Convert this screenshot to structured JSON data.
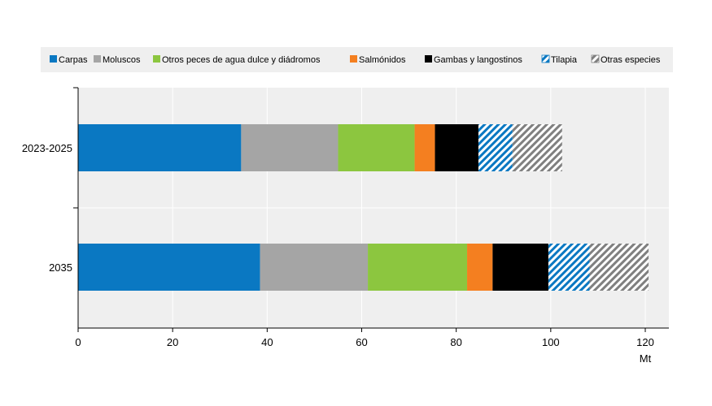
{
  "chart_data": {
    "type": "bar",
    "orientation": "horizontal",
    "stacked": true,
    "categories": [
      "2023-2025",
      "2035"
    ],
    "xlabel": "Mt",
    "xlim": [
      0,
      125
    ],
    "xticks": [
      0,
      20,
      40,
      60,
      80,
      100,
      120
    ],
    "grid": true,
    "legend_position": "top",
    "series": [
      {
        "name": "Carpas",
        "values": [
          34.5,
          38.5
        ],
        "color": "#0a78c2",
        "pattern": "solid"
      },
      {
        "name": "Moluscos",
        "values": [
          20.5,
          22.8
        ],
        "color": "#a5a5a5",
        "pattern": "solid"
      },
      {
        "name": "Otros peces de agua dulce y diádromos",
        "values": [
          16.2,
          21.0
        ],
        "color": "#8cc63f",
        "pattern": "solid"
      },
      {
        "name": "Salmónidos",
        "values": [
          4.3,
          5.4
        ],
        "color": "#f47f20",
        "pattern": "solid"
      },
      {
        "name": "Gambas y langostinos",
        "values": [
          9.2,
          11.8
        ],
        "color": "#000000",
        "pattern": "solid"
      },
      {
        "name": "Tilapia",
        "values": [
          7.2,
          8.7
        ],
        "color": "#0a78c2",
        "pattern": "hatch"
      },
      {
        "name": "Otras especies",
        "values": [
          10.5,
          12.5
        ],
        "color": "#808080",
        "pattern": "hatch"
      }
    ]
  }
}
